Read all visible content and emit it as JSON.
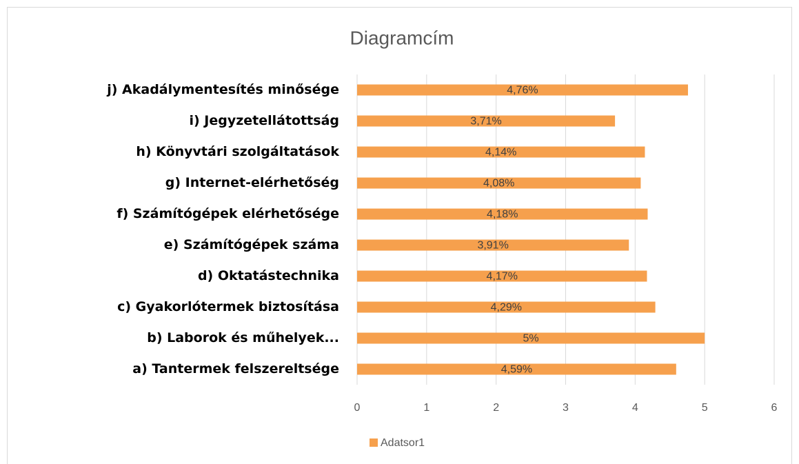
{
  "chart_data": {
    "type": "bar",
    "orientation": "horizontal",
    "title": "Diagramcím",
    "categories": [
      "a) Tantermek felszereltsége",
      "b) Laborok és műhelyek...",
      "c) Gyakorlótermek biztosítása",
      "d) Oktatástechnika",
      "e) Számítógépek száma",
      "f) Számítógépek elérhetősége",
      "g) Internet-elérhetőség",
      "h) Könyvtári szolgáltatások",
      "i) Jegyzetellátottság",
      "j) Akadálymentesítés minősége"
    ],
    "series": [
      {
        "name": "Adatsor1",
        "color": "#f6a04d",
        "values": [
          4.59,
          5,
          4.29,
          4.17,
          3.91,
          4.18,
          4.08,
          4.14,
          3.71,
          4.76
        ],
        "value_labels": [
          "4,59%",
          "5%",
          "4,29%",
          "4,17%",
          "3,91%",
          "4,18%",
          "4,08%",
          "4,14%",
          "3,71%",
          "4,76%"
        ]
      }
    ],
    "xlim": [
      0,
      6
    ],
    "xticks": [
      0,
      1,
      2,
      3,
      4,
      5,
      6
    ],
    "grid": true,
    "legend": "bottom"
  }
}
